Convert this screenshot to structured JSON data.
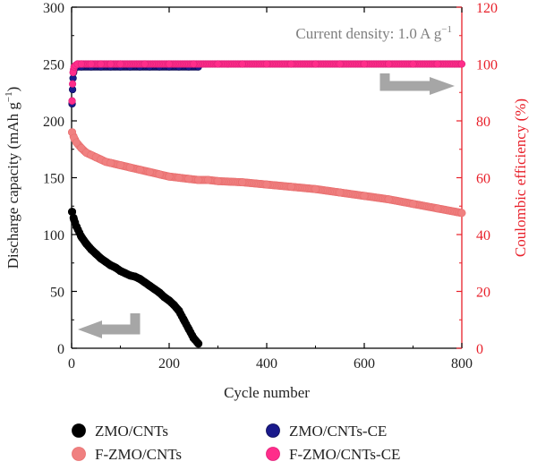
{
  "chart_data": {
    "type": "scatter",
    "annotation": "Current density: 1.0 A g",
    "annotation_sup": "−1",
    "xlabel": "Cycle number",
    "ylabel_left": "Discharge capacity (mAh g",
    "ylabel_left_sup": "−1",
    "ylabel_left_end": ")",
    "ylabel_right": "Coulombic efficiency (%)",
    "xlim": [
      0,
      800
    ],
    "ylim_left": [
      0,
      300
    ],
    "ylim_right": [
      0,
      120
    ],
    "x_ticks": [
      0,
      200,
      400,
      600,
      800
    ],
    "y_left_ticks": [
      0,
      50,
      100,
      150,
      200,
      250,
      300
    ],
    "y_right_ticks": [
      0,
      20,
      40,
      60,
      80,
      100,
      120
    ],
    "grid": false,
    "legend_position": "bottom",
    "colors": {
      "axis_right": "#e8202a",
      "zmo": "#000000",
      "fzmo": "#f08080",
      "zmo_ce": "#1a1a8c",
      "fzmo_ce": "#ff2d8a",
      "arrow": "#a6a6a6"
    },
    "series": [
      {
        "name": "ZMO/CNTs",
        "axis": "left",
        "x": [
          1,
          5,
          10,
          20,
          30,
          40,
          50,
          60,
          70,
          80,
          90,
          100,
          110,
          120,
          130,
          140,
          150,
          160,
          170,
          180,
          190,
          200,
          210,
          220,
          230,
          240,
          250,
          260
        ],
        "y": [
          120,
          113,
          107,
          98,
          92,
          87,
          83,
          79,
          76,
          73,
          71,
          68,
          66,
          64,
          63,
          61,
          58,
          55,
          52,
          49,
          45,
          42,
          38,
          33,
          25,
          17,
          9,
          4
        ]
      },
      {
        "name": "F-ZMO/CNTs",
        "axis": "left",
        "x": [
          1,
          5,
          10,
          20,
          30,
          40,
          50,
          60,
          70,
          80,
          100,
          120,
          140,
          160,
          180,
          200,
          220,
          240,
          260,
          280,
          300,
          350,
          400,
          450,
          500,
          550,
          600,
          650,
          700,
          750,
          800
        ],
        "y": [
          190,
          185,
          181,
          176,
          172,
          170,
          168,
          166,
          164,
          163,
          161,
          159,
          157,
          155,
          153,
          151,
          150,
          149,
          148,
          148,
          147,
          146,
          144,
          142,
          140,
          137,
          134,
          131,
          127,
          123,
          119
        ]
      },
      {
        "name": "ZMO/CNTs-CE",
        "axis": "right",
        "x": [
          1,
          2,
          3,
          4,
          5,
          8,
          12,
          20,
          40,
          60,
          80,
          100,
          120,
          140,
          160,
          180,
          200,
          220,
          240,
          260
        ],
        "y": [
          86,
          91,
          95,
          97,
          98,
          99,
          99,
          99,
          99,
          99,
          99,
          99,
          99,
          99,
          99,
          99,
          99,
          99,
          99,
          99
        ]
      },
      {
        "name": "F-ZMO/CNTs-CE",
        "axis": "right",
        "x": [
          1,
          2,
          3,
          5,
          8,
          12,
          20,
          40,
          60,
          80,
          100,
          150,
          200,
          250,
          300,
          350,
          400,
          450,
          500,
          550,
          600,
          650,
          700,
          750,
          800
        ],
        "y": [
          87,
          93,
          97,
          99,
          99.5,
          100,
          100,
          100,
          100,
          100,
          100,
          100,
          100,
          100,
          100,
          100,
          100,
          100,
          100,
          100,
          100,
          100,
          100,
          100,
          100
        ]
      }
    ]
  }
}
